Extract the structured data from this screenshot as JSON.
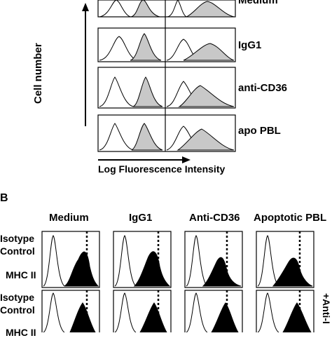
{
  "panel_a": {
    "y_axis_label": "Cell number",
    "x_axis_label": "Log Fluorescence Intensity",
    "row_labels": [
      "Medium",
      "IgG1",
      "anti-CD36",
      "apo PBL"
    ]
  },
  "panel_b": {
    "panel_letter": "B",
    "column_headers": [
      "Medium",
      "IgG1",
      "Anti-CD36",
      "Apoptotic PBL"
    ],
    "row1_labels": [
      "Isotype",
      "Control",
      "MHC II"
    ],
    "row2_labels": [
      "Isotype",
      "Control",
      "MHC II"
    ],
    "side_label": "+Anti-I"
  },
  "colors": {
    "ink": "#000000",
    "fill_light": "#c8c8c8",
    "background": "#ffffff"
  }
}
